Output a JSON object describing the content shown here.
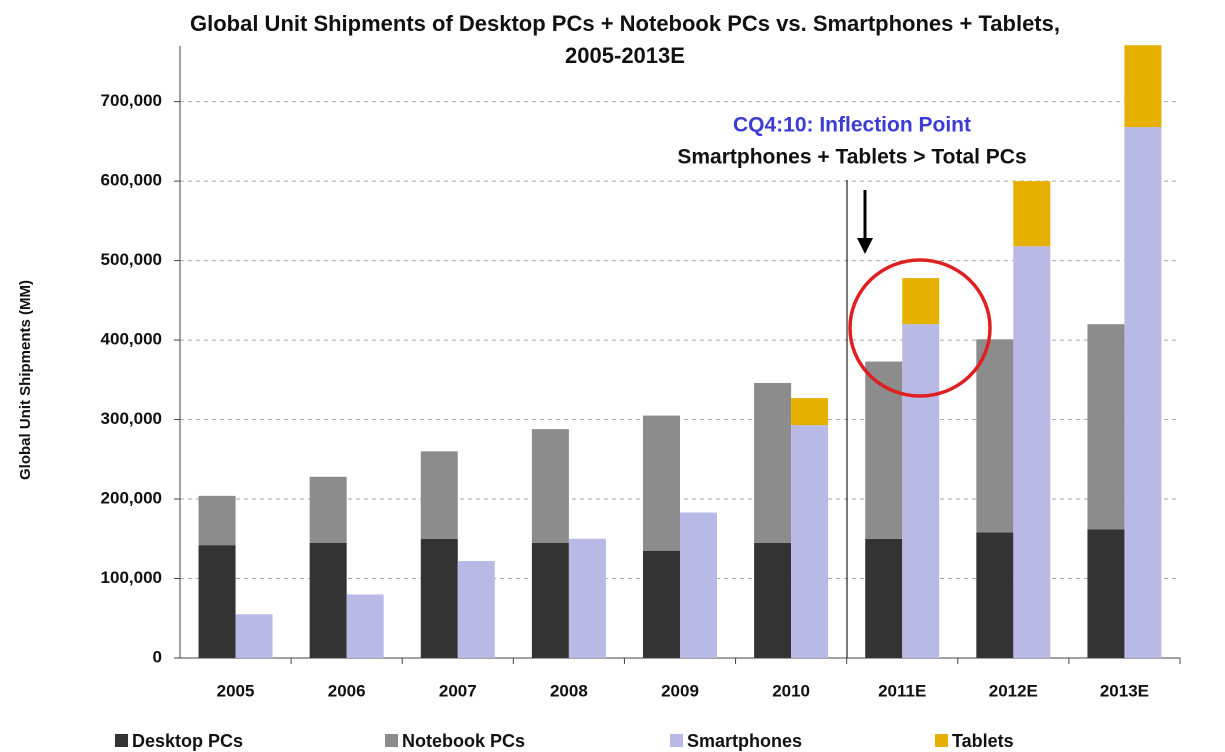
{
  "chart_data": {
    "type": "stacked_bar",
    "title": [
      "Global Unit Shipments of Desktop PCs + Notebook PCs vs. Smartphones + Tablets,",
      "2005-2013E"
    ],
    "y_label": "Global Unit Shipments (MM)",
    "categories": [
      "2005",
      "2006",
      "2007",
      "2008",
      "2009",
      "2010",
      "2011E",
      "2012E",
      "2013E"
    ],
    "series": [
      {
        "name": "Desktop PCs",
        "color": "#333333",
        "stack": 0,
        "values": [
          142000,
          145000,
          150000,
          145000,
          135000,
          145000,
          150000,
          158000,
          162000
        ]
      },
      {
        "name": "Notebook PCs",
        "color": "#8c8c8c",
        "stack": 0,
        "values": [
          62000,
          83000,
          110000,
          143000,
          170000,
          201000,
          223000,
          243000,
          258000
        ]
      },
      {
        "name": "Smartphones",
        "color": "#b9b9e6",
        "stack": 1,
        "values": [
          55000,
          80000,
          122000,
          150000,
          183000,
          293000,
          420000,
          518000,
          668000
        ]
      },
      {
        "name": "Tablets",
        "color": "#e6b000",
        "stack": 1,
        "values": [
          0,
          0,
          0,
          0,
          0,
          34000,
          58000,
          82000,
          103000
        ]
      }
    ],
    "ylim": [
      0,
      770000
    ],
    "yticks": [
      0,
      {
        "value": 100000,
        "label": "100,000"
      },
      {
        "value": 200000,
        "label": "200,000"
      },
      {
        "value": 300000,
        "label": "300,000"
      },
      {
        "value": 400000,
        "label": "400,000"
      },
      {
        "value": 500000,
        "label": "500,000"
      },
      {
        "value": 600000,
        "label": "600,000"
      },
      {
        "value": 700000,
        "label": "700,000"
      }
    ],
    "grid": true,
    "annotations": [
      "CQ4:10: Inflection Point",
      "Smartphones + Tablets > Total PCs"
    ]
  }
}
